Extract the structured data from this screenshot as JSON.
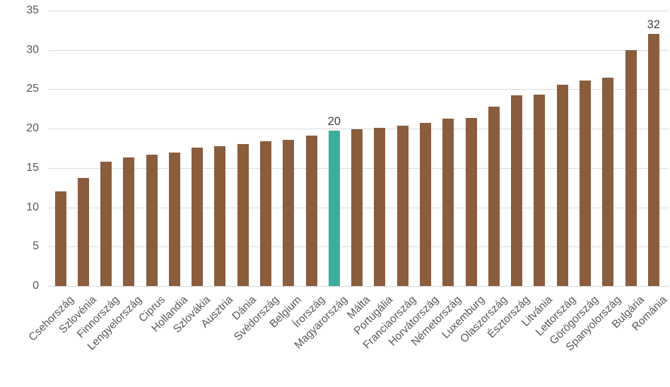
{
  "page": {
    "background": "#ffffff"
  },
  "style": {
    "bar_color": "#8a5d3d",
    "highlight_color": "#3bae9d",
    "grid_color": "#d9d9d9",
    "axis_label_color": "#595959",
    "value_label_color": "#404040"
  },
  "chart_data": {
    "type": "bar",
    "title": "",
    "xlabel": "",
    "ylabel": "",
    "categories": [
      "Csehország",
      "Szlovénia",
      "Finnország",
      "Lengyelország",
      "Ciprus",
      "Hollandia",
      "Szlovákia",
      "Ausztria",
      "Dánia",
      "Svédország",
      "Belgium",
      "Írország",
      "Magyarország",
      "Málta",
      "Portugália",
      "Franciaország",
      "Horvátország",
      "Németország",
      "Luxemburg",
      "Olaszország",
      "Észtország",
      "Litvánia",
      "Lettország",
      "Görögország",
      "Spanyolország",
      "Bulgária",
      "Románia"
    ],
    "values": [
      12,
      13.7,
      15.8,
      16.3,
      16.7,
      17,
      17.6,
      17.8,
      18,
      18.4,
      18.6,
      19.1,
      19.7,
      19.9,
      20.1,
      20.4,
      20.7,
      21.3,
      21.4,
      22.8,
      24.2,
      24.3,
      25.6,
      26.1,
      26.5,
      30,
      32
    ],
    "highlighted_category": "Magyarország",
    "highlight_index": 12,
    "data_labels": [
      {
        "index": 12,
        "text": "20"
      },
      {
        "index": 26,
        "text": "32"
      }
    ],
    "y_tick_labels": [
      "0",
      "5",
      "10",
      "15",
      "20",
      "25",
      "30",
      "35"
    ],
    "y_tick_values": [
      0,
      5,
      10,
      15,
      20,
      25,
      30,
      35
    ],
    "ylim": [
      0,
      35
    ],
    "grid": "horizontal",
    "legend": "none",
    "x_label_rotation_deg": 45
  }
}
